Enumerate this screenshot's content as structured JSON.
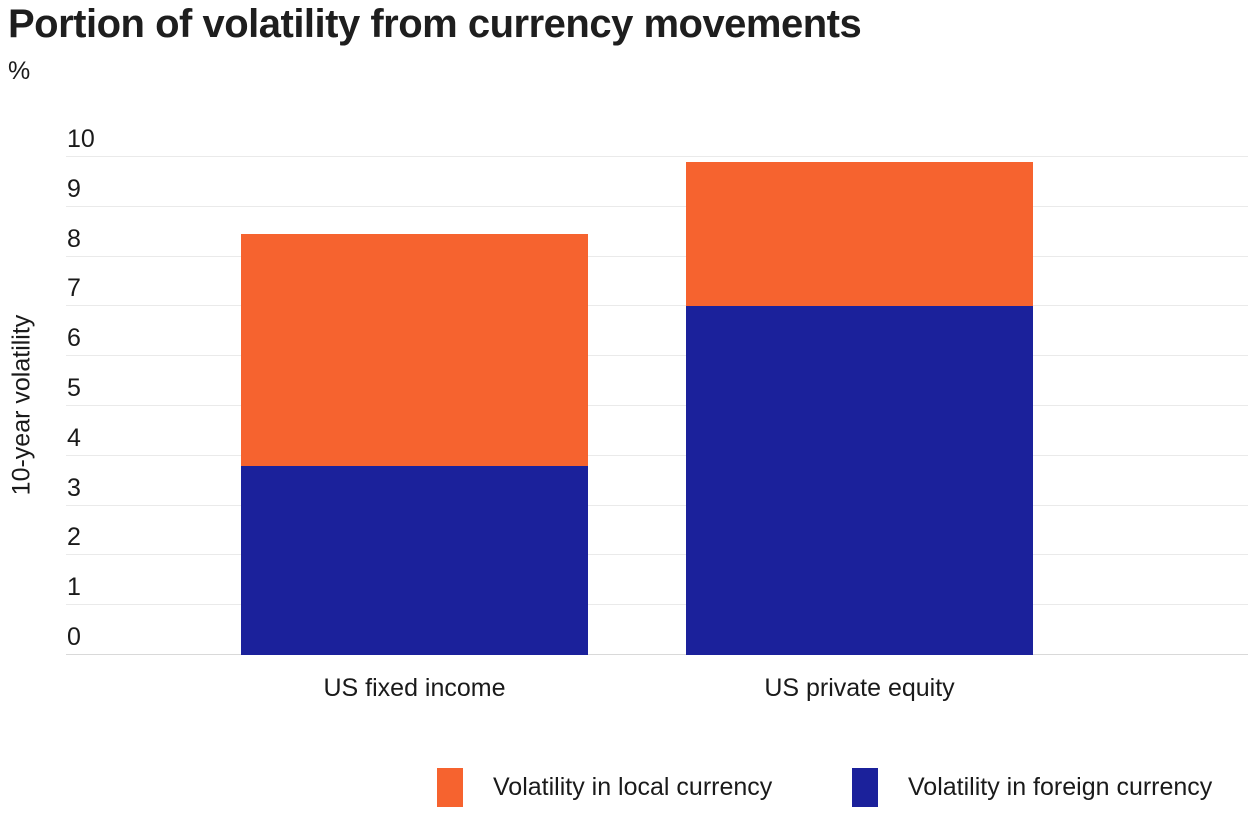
{
  "chart": {
    "title": "Portion of volatility from currency movements",
    "unit_label": "%",
    "y_axis_title": "10-year volatility"
  },
  "chart_data": {
    "type": "bar",
    "subtype": "stacked",
    "title": "Portion of volatility from currency movements",
    "unit": "%",
    "ylabel": "10-year volatility",
    "ylim": [
      0,
      10
    ],
    "yticks": [
      0,
      1,
      2,
      3,
      4,
      5,
      6,
      7,
      8,
      9,
      10
    ],
    "grid": true,
    "categories": [
      "US fixed income",
      "US private equity"
    ],
    "series": [
      {
        "name": "Volatility in foreign currency",
        "color": "#1B219B",
        "values": [
          3.8,
          7.0
        ]
      },
      {
        "name": "Volatility in local currency",
        "color": "#F6632F",
        "values": [
          4.65,
          2.9
        ]
      }
    ],
    "totals": [
      8.45,
      9.9
    ],
    "legend": {
      "position": "bottom",
      "items": [
        {
          "label": "Volatility in local currency",
          "color": "#F6632F"
        },
        {
          "label": "Volatility in foreign currency",
          "color": "#1B219B"
        }
      ]
    }
  },
  "colors": {
    "local_currency": "#F6632F",
    "foreign_currency": "#1B219B",
    "text": "#1a1a1a",
    "gridline": "#eaeaea",
    "baseline": "#d9d9d9"
  }
}
